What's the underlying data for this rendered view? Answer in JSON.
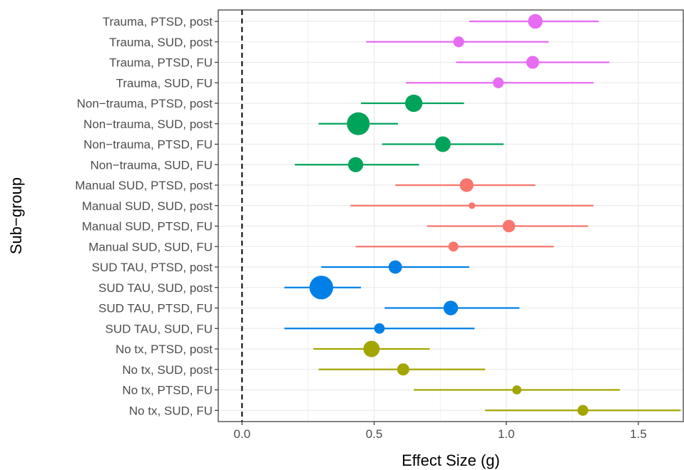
{
  "chart_data": {
    "type": "forest",
    "xlabel": "Effect Size (g)",
    "ylabel": "Sub−group",
    "xlim": [
      -0.09,
      1.67
    ],
    "x_ticks": [
      {
        "value": 0.0,
        "label": "0.0"
      },
      {
        "value": 0.5,
        "label": "0.5"
      },
      {
        "value": 1.0,
        "label": "1.0"
      },
      {
        "value": 1.5,
        "label": "1.5"
      }
    ],
    "reference_line": 0,
    "grid": true,
    "group_colors": {
      "Trauma": "#E76BF3",
      "Non-trauma": "#00A35A",
      "Manual SUD": "#F8766D",
      "SUD TAU": "#0080E6",
      "No tx": "#A3A500"
    },
    "rows": [
      {
        "label": "Trauma, PTSD, post",
        "group": "Trauma",
        "estimate": 1.11,
        "lower": 0.86,
        "upper": 1.35,
        "weight": 0.52
      },
      {
        "label": "Trauma, SUD, post",
        "group": "Trauma",
        "estimate": 0.82,
        "lower": 0.47,
        "upper": 1.16,
        "weight": 0.3
      },
      {
        "label": "Trauma, PTSD, FU",
        "group": "Trauma",
        "estimate": 1.1,
        "lower": 0.81,
        "upper": 1.39,
        "weight": 0.42
      },
      {
        "label": "Trauma, SUD, FU",
        "group": "Trauma",
        "estimate": 0.97,
        "lower": 0.62,
        "upper": 1.33,
        "weight": 0.3
      },
      {
        "label": "Non−trauma, PTSD, post",
        "group": "Non-trauma",
        "estimate": 0.65,
        "lower": 0.45,
        "upper": 0.84,
        "weight": 0.68
      },
      {
        "label": "Non−trauma, SUD, post",
        "group": "Non-trauma",
        "estimate": 0.44,
        "lower": 0.29,
        "upper": 0.59,
        "weight": 1.0
      },
      {
        "label": "Non−trauma, PTSD, FU",
        "group": "Non-trauma",
        "estimate": 0.76,
        "lower": 0.53,
        "upper": 0.99,
        "weight": 0.58
      },
      {
        "label": "Non−trauma, SUD, FU",
        "group": "Non-trauma",
        "estimate": 0.43,
        "lower": 0.2,
        "upper": 0.67,
        "weight": 0.55
      },
      {
        "label": "Manual SUD, PTSD, post",
        "group": "Manual SUD",
        "estimate": 0.85,
        "lower": 0.58,
        "upper": 1.11,
        "weight": 0.47
      },
      {
        "label": "Manual SUD, SUD, post",
        "group": "Manual SUD",
        "estimate": 0.87,
        "lower": 0.41,
        "upper": 1.33,
        "weight": 0.05
      },
      {
        "label": "Manual SUD, PTSD, FU",
        "group": "Manual SUD",
        "estimate": 1.01,
        "lower": 0.7,
        "upper": 1.31,
        "weight": 0.4
      },
      {
        "label": "Manual SUD, SUD, FU",
        "group": "Manual SUD",
        "estimate": 0.8,
        "lower": 0.43,
        "upper": 1.18,
        "weight": 0.25
      },
      {
        "label": "SUD TAU, PTSD, post",
        "group": "SUD TAU",
        "estimate": 0.58,
        "lower": 0.3,
        "upper": 0.86,
        "weight": 0.45
      },
      {
        "label": "SUD TAU, SUD, post",
        "group": "SUD TAU",
        "estimate": 0.3,
        "lower": 0.16,
        "upper": 0.45,
        "weight": 1.05
      },
      {
        "label": "SUD TAU, PTSD, FU",
        "group": "SUD TAU",
        "estimate": 0.79,
        "lower": 0.54,
        "upper": 1.05,
        "weight": 0.52
      },
      {
        "label": "SUD TAU, SUD, FU",
        "group": "SUD TAU",
        "estimate": 0.52,
        "lower": 0.16,
        "upper": 0.88,
        "weight": 0.28
      },
      {
        "label": "No tx, PTSD, post",
        "group": "No tx",
        "estimate": 0.49,
        "lower": 0.27,
        "upper": 0.71,
        "weight": 0.62
      },
      {
        "label": "No tx, SUD, post",
        "group": "No tx",
        "estimate": 0.61,
        "lower": 0.29,
        "upper": 0.92,
        "weight": 0.38
      },
      {
        "label": "No tx, PTSD, FU",
        "group": "No tx",
        "estimate": 1.04,
        "lower": 0.65,
        "upper": 1.43,
        "weight": 0.2
      },
      {
        "label": "No tx, SUD, FU",
        "group": "No tx",
        "estimate": 1.29,
        "lower": 0.92,
        "upper": 1.66,
        "weight": 0.3
      }
    ]
  }
}
